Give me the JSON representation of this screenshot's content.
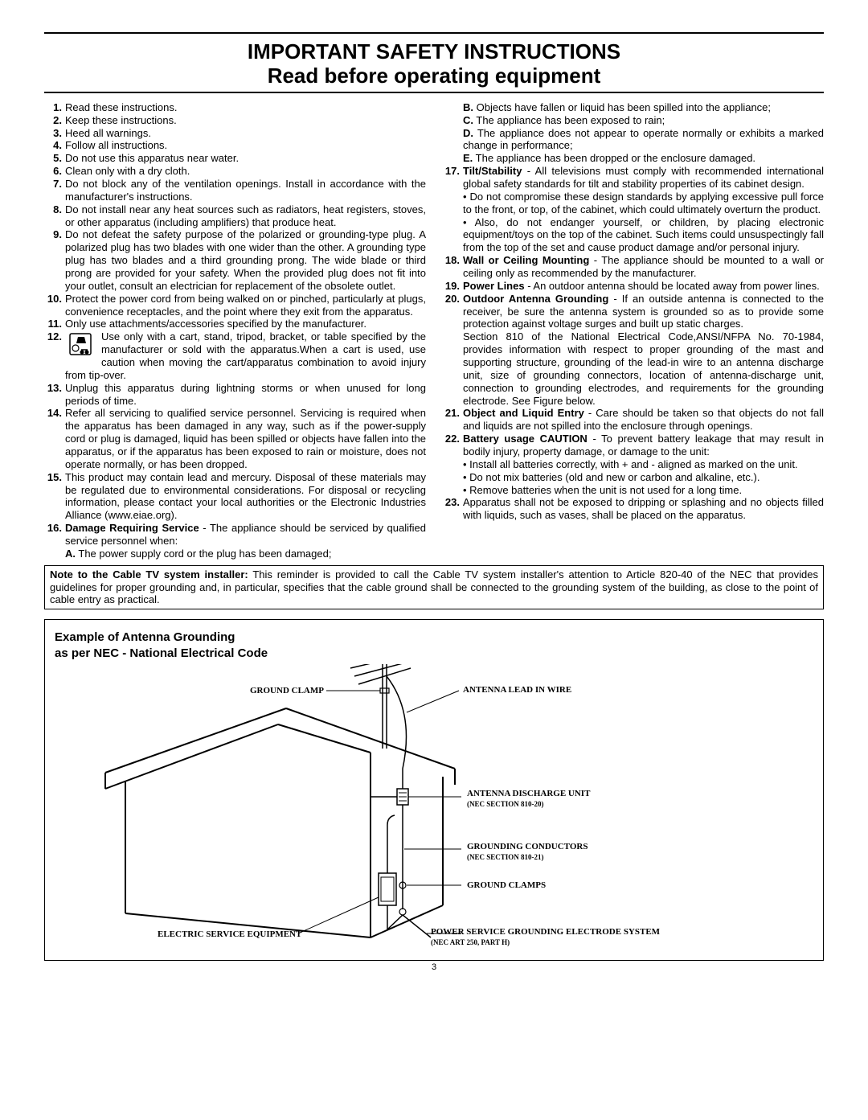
{
  "title": {
    "line1": "IMPORTANT SAFETY INSTRUCTIONS",
    "line2": "Read before operating equipment"
  },
  "left_items": [
    {
      "n": "1.",
      "t": "Read these instructions."
    },
    {
      "n": "2.",
      "t": "Keep these instructions."
    },
    {
      "n": "3.",
      "t": "Heed all warnings."
    },
    {
      "n": "4.",
      "t": "Follow all instructions."
    },
    {
      "n": "5.",
      "t": "Do not use this apparatus near water."
    },
    {
      "n": "6.",
      "t": "Clean only with a dry cloth."
    },
    {
      "n": "7.",
      "t": "Do not block any of the ventilation openings. Install in accordance with the manufacturer's instructions."
    },
    {
      "n": "8.",
      "t": "Do not install near any heat sources such as radiators, heat registers, stoves, or other apparatus (including amplifiers) that produce heat."
    },
    {
      "n": "9.",
      "t": "Do not defeat the safety purpose of the polarized or grounding-type plug. A polarized plug has two blades with one wider than the other. A grounding type plug has two blades and a third grounding prong. The wide blade or third prong are provided for your safety. When the provided plug does not fit into your outlet, consult an electrician for replacement of the obsolete outlet."
    },
    {
      "n": "10.",
      "t": "Protect the power cord from being walked on or pinched, particularly at plugs, convenience receptacles, and the point where they exit from the apparatus."
    },
    {
      "n": "11.",
      "t": "Only use attachments/accessories specified by the manufacturer."
    }
  ],
  "item12_n": "12.",
  "item12_lead": "Use only with a cart, stand, tripod, bracket, or table specified by",
  "item12_rest": "the manufacturer or sold with the apparatus.When a cart is used, use caution when moving the cart/apparatus combination to avoid injury from tip-over.",
  "left_items_2": [
    {
      "n": "13.",
      "t": "Unplug this apparatus during lightning storms or when unused for long periods of time."
    },
    {
      "n": "14.",
      "t": "Refer all servicing to qualified service personnel. Servicing is required when the apparatus has been damaged in any way, such as if the power-supply cord or plug is damaged, liquid has been spilled or objects have fallen into the apparatus, or if the apparatus has been exposed to rain or moisture, does not operate normally, or has been dropped."
    },
    {
      "n": "15.",
      "t": "This product may contain lead and mercury. Disposal of these materials may be regulated due to environmental considerations. For disposal or recycling information, please contact your local authorities or the Electronic Industries Alliance (www.eiae.org)."
    }
  ],
  "item16_n": "16.",
  "item16_bold": "Damage Requiring Service",
  "item16_rest": " - The appliance should be serviced by qualified service personnel when:",
  "item16_a_bold": "A.",
  "item16_a": " The power supply cord or the plug has been damaged;",
  "right_subs": [
    {
      "b": "B.",
      "t": " Objects have fallen or liquid has been spilled into the appliance;"
    },
    {
      "b": "C.",
      "t": " The appliance has been exposed to rain;"
    },
    {
      "b": "D.",
      "t": " The appliance does not appear to operate normally or exhibits a marked change in performance;"
    },
    {
      "b": "E.",
      "t": " The appliance has been dropped or the enclosure damaged."
    }
  ],
  "item17_n": "17.",
  "item17_bold": "Tilt/Stability",
  "item17_t": " - All televisions must comply with recommended international global safety standards for tilt and stability properties of its cabinet design.",
  "item17_bul1": " • Do not compromise these design standards by applying excessive pull force to the front, or top, of the cabinet, which could ultimately overturn the product.",
  "item17_bul2": " • Also, do not endanger yourself, or children, by placing electronic equipment/toys on the top of the cabinet. Such items could unsuspectingly fall from the top of the set and cause product damage and/or personal injury.",
  "item18_n": "18.",
  "item18_bold": "Wall or Ceiling Mounting",
  "item18_t": " - The appliance should be mounted to a wall or ceiling only as recommended by the manufacturer.",
  "item19_n": "19.",
  "item19_bold": "Power Lines",
  "item19_t": " - An outdoor antenna should be located away from power lines.",
  "item20_n": "20.",
  "item20_bold": "Outdoor Antenna Grounding",
  "item20_t": " - If an outside antenna is connected to the receiver, be sure the antenna system is grounded so as to provide some protection against voltage surges and built up static charges.",
  "item20_p2": "Section 810 of the National Electrical Code,ANSI/NFPA No. 70-1984, provides information with respect to proper grounding of the mast and supporting structure, grounding of the lead-in wire to an antenna discharge unit, size of grounding connectors, location of antenna-discharge unit, connection to grounding electrodes, and requirements for the grounding electrode. See Figure below.",
  "item21_n": "21.",
  "item21_bold": "Object and Liquid Entry",
  "item21_t": " - Care should be taken so that objects do not fall and liquids are not spilled into the enclosure through openings.",
  "item22_n": "22.",
  "item22_bold": "Battery usage CAUTION",
  "item22_t": " - To prevent battery leakage that may result in bodily injury, property damage, or damage to the unit:",
  "item22_bul1": " • Install all batteries correctly, with + and - aligned as marked on the unit.",
  "item22_bul2": " • Do not mix batteries (old and new or carbon and alkaline, etc.).",
  "item22_bul3": " • Remove batteries when the unit is not used for a long time.",
  "item23_n": "23.",
  "item23_t": "Apparatus shall not be exposed to dripping or splashing and no objects filled with liquids, such as vases, shall be placed on the apparatus.",
  "note_bold": "Note to the Cable TV system installer:",
  "note_text": " This reminder is provided to call the Cable TV system installer's attention to Article 820-40 of the NEC that provides guidelines for proper grounding and, in particular, specifies that the cable ground shall be connected to the grounding system of the building, as close to the point of cable entry as practical.",
  "diagram": {
    "title_l1": "Example of Antenna Grounding",
    "title_l2": "as per NEC - National Electrical Code",
    "labels": {
      "ground_clamp": "GROUND CLAMP",
      "antenna_lead": "ANTENNA LEAD IN WIRE",
      "discharge_unit": "ANTENNA DISCHARGE UNIT",
      "discharge_sub": "(NEC SECTION 810-20)",
      "grounding_cond": "GROUNDING CONDUCTORS",
      "grounding_cond_sub": "(NEC SECTION 810-21)",
      "ground_clamps": "GROUND CLAMPS",
      "electric_service": "ELECTRIC SERVICE EQUIPMENT",
      "power_service": "POWER SERVICE GROUNDING ELECTRODE SYSTEM",
      "power_service_sub": "(NEC ART 250, PART H)"
    }
  },
  "page_number": "3"
}
